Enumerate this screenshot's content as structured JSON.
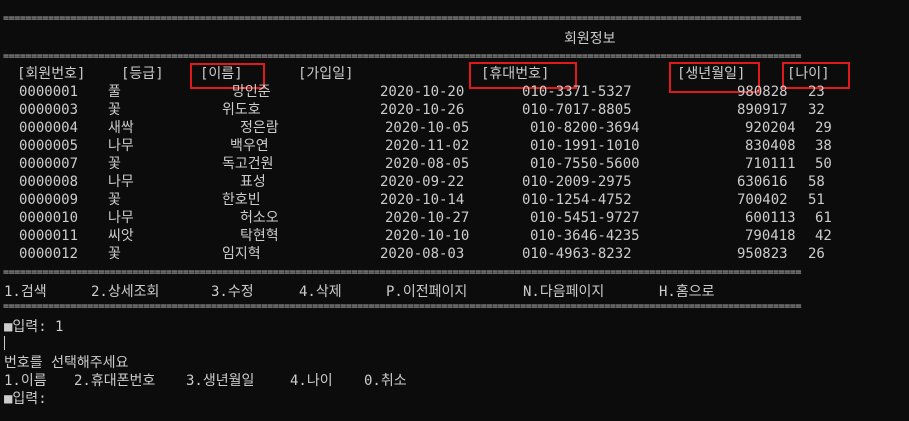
{
  "separator": "==============================================================================================================================================",
  "title": "회원정보",
  "headers": {
    "id": "[회원번호]",
    "grade": "[등급]",
    "name": "[이름]",
    "join": "[가입일]",
    "phone": "[휴대번호]",
    "birth": "[생년월일]",
    "age": "[나이]"
  },
  "rows": [
    {
      "id": "0000001",
      "grade": "풀",
      "name": "망인준",
      "join": "2020-10-20",
      "phone": "010-3371-5327",
      "birth": "980828",
      "age": "23"
    },
    {
      "id": "0000003",
      "grade": "꽃",
      "name": "위도호",
      "join": "2020-10-26",
      "phone": "010-7017-8805",
      "birth": "890917",
      "age": "32"
    },
    {
      "id": "0000004",
      "grade": "새싹",
      "name": "정은람",
      "join": "2020-10-05",
      "phone": "010-8200-3694",
      "birth": "920204",
      "age": "29"
    },
    {
      "id": "0000005",
      "grade": "나무",
      "name": "백우연",
      "join": "2020-11-02",
      "phone": "010-1991-1010",
      "birth": "830408",
      "age": "38"
    },
    {
      "id": "0000007",
      "grade": "꽃",
      "name": "독고건원",
      "join": "2020-08-05",
      "phone": "010-7550-5600",
      "birth": "710111",
      "age": "50"
    },
    {
      "id": "0000008",
      "grade": "나무",
      "name": "표성",
      "join": "2020-09-22",
      "phone": "010-2009-2975",
      "birth": "630616",
      "age": "58"
    },
    {
      "id": "0000009",
      "grade": "꽃",
      "name": "한호빈",
      "join": "2020-10-14",
      "phone": "010-1254-4752",
      "birth": "700402",
      "age": "51"
    },
    {
      "id": "0000010",
      "grade": "나무",
      "name": "허소오",
      "join": "2020-10-27",
      "phone": "010-5451-9727",
      "birth": "600113",
      "age": "61"
    },
    {
      "id": "0000011",
      "grade": "씨앗",
      "name": "탁현혁",
      "join": "2020-10-10",
      "phone": "010-3646-4235",
      "birth": "790418",
      "age": "42"
    },
    {
      "id": "0000012",
      "grade": "꽃",
      "name": "임지혁",
      "join": "2020-08-03",
      "phone": "010-4963-8232",
      "birth": "950823",
      "age": "26"
    }
  ],
  "menu": {
    "search": "1.검색",
    "detail": "2.상세조회",
    "edit": "3.수정",
    "delete": "4.삭제",
    "prev": "P.이전페이지",
    "next": "N.다음페이지",
    "home": "H.홈으로"
  },
  "input1": "■입력: 1",
  "prompt": "번호를 선택해주세요",
  "options": {
    "name": "1.이름",
    "phone": "2.휴대폰번호",
    "birth": "3.생년월일",
    "age": "4.나이",
    "cancel": "0.취소"
  },
  "input2": "■입력:",
  "colors": {
    "background": "#0c0c0c",
    "text": "#cccccc",
    "highlight": "#e0191b"
  }
}
